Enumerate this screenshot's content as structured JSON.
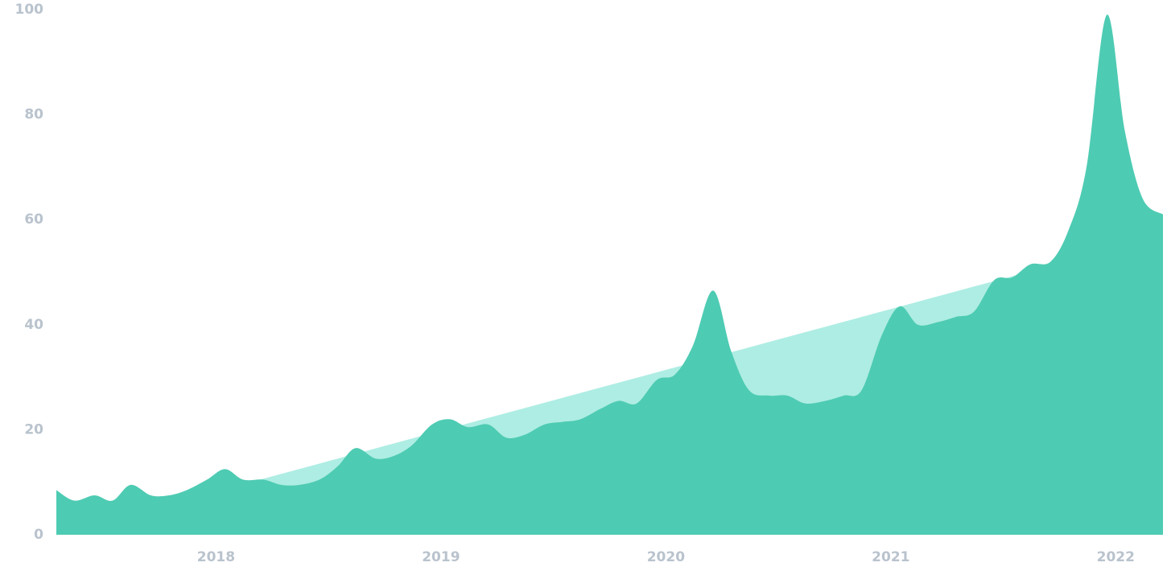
{
  "chart_data": {
    "type": "area",
    "x": [
      2017.29,
      2017.37,
      2017.46,
      2017.54,
      2017.62,
      2017.71,
      2017.79,
      2017.87,
      2017.96,
      2018.04,
      2018.12,
      2018.21,
      2018.29,
      2018.37,
      2018.46,
      2018.54,
      2018.62,
      2018.71,
      2018.79,
      2018.87,
      2018.96,
      2019.04,
      2019.12,
      2019.21,
      2019.29,
      2019.37,
      2019.46,
      2019.54,
      2019.62,
      2019.71,
      2019.79,
      2019.87,
      2019.96,
      2020.04,
      2020.12,
      2020.21,
      2020.29,
      2020.37,
      2020.46,
      2020.54,
      2020.62,
      2020.71,
      2020.79,
      2020.87,
      2020.96,
      2021.04,
      2021.12,
      2021.21,
      2021.29,
      2021.37,
      2021.46,
      2021.54,
      2021.62,
      2021.71,
      2021.79,
      2021.87,
      2021.96,
      2022.04,
      2022.12,
      2022.21
    ],
    "series": [
      {
        "color": "#aeede3",
        "x": [
          2017.29,
          2022.21
        ],
        "values": [
          0,
          57
        ]
      },
      {
        "color": "#4ecbb3",
        "values": [
          8.5,
          6.5,
          7.5,
          6.5,
          9.5,
          7.5,
          7.5,
          8.5,
          10.5,
          12.5,
          10.5,
          10.5,
          9.5,
          9.5,
          10.5,
          13,
          16.5,
          14.5,
          15,
          17,
          21,
          22,
          20.5,
          21,
          18.5,
          19,
          21,
          21.5,
          22,
          24,
          25.5,
          25,
          29.5,
          30.5,
          36,
          46.5,
          35,
          27.5,
          26.5,
          26.5,
          25,
          25.5,
          26.5,
          27.5,
          38,
          43.5,
          40,
          40.5,
          41.5,
          42.5,
          48.5,
          49,
          51.5,
          52,
          58,
          70,
          99,
          77,
          64,
          61
        ]
      }
    ],
    "xlim": [
      2017.29,
      2022.21
    ],
    "xticks": [
      2018,
      2019,
      2020,
      2021,
      2022
    ],
    "ylim": [
      0,
      100
    ],
    "yticks": [
      0,
      20,
      40,
      60,
      80,
      100
    ],
    "grid": false
  }
}
